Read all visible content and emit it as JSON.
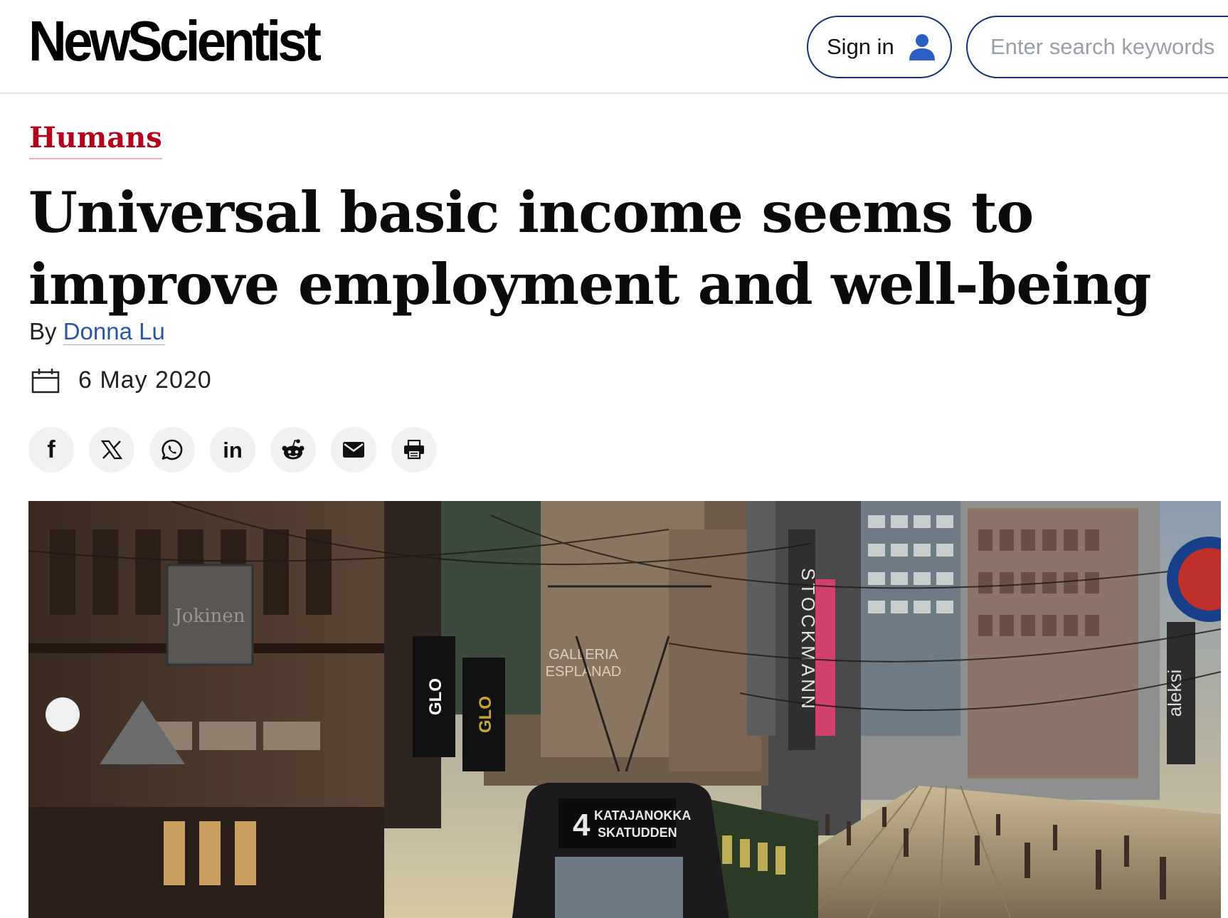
{
  "header": {
    "logo_text": "NewScientist",
    "sign_in_label": "Sign in",
    "search_placeholder": "Enter search keywords"
  },
  "article": {
    "category": "Humans",
    "headline": "Universal basic income seems to improve employment and well-being",
    "byline_prefix": "By",
    "author": "Donna Lu",
    "date": "6 May 2020"
  },
  "share": {
    "buttons": [
      {
        "name": "facebook",
        "icon": "facebook-icon",
        "glyph": "f"
      },
      {
        "name": "x",
        "icon": "x-icon",
        "glyph": "𝕏"
      },
      {
        "name": "whatsapp",
        "icon": "whatsapp-icon"
      },
      {
        "name": "linkedin",
        "icon": "linkedin-icon",
        "glyph": "in"
      },
      {
        "name": "reddit",
        "icon": "reddit-icon"
      },
      {
        "name": "email",
        "icon": "email-icon"
      },
      {
        "name": "print",
        "icon": "print-icon"
      }
    ]
  },
  "hero_image": {
    "signs": {
      "tram_route": "4",
      "tram_dest_1": "KATAJANOKKA",
      "tram_dest_2": "SKATUDDEN",
      "shop_1": "Jokinen",
      "shop_2": "GLO",
      "shop_3": "GLO",
      "galleria": "GALLERIA",
      "esplanad": "ESPLANAD",
      "stockmann": "STOCKMANN",
      "aleksi": "aleksi"
    }
  },
  "colors": {
    "brand_blue": "#12317a",
    "category_red": "#b3001b",
    "link_blue": "#2b55a6",
    "share_bg": "#f1f1f1"
  }
}
